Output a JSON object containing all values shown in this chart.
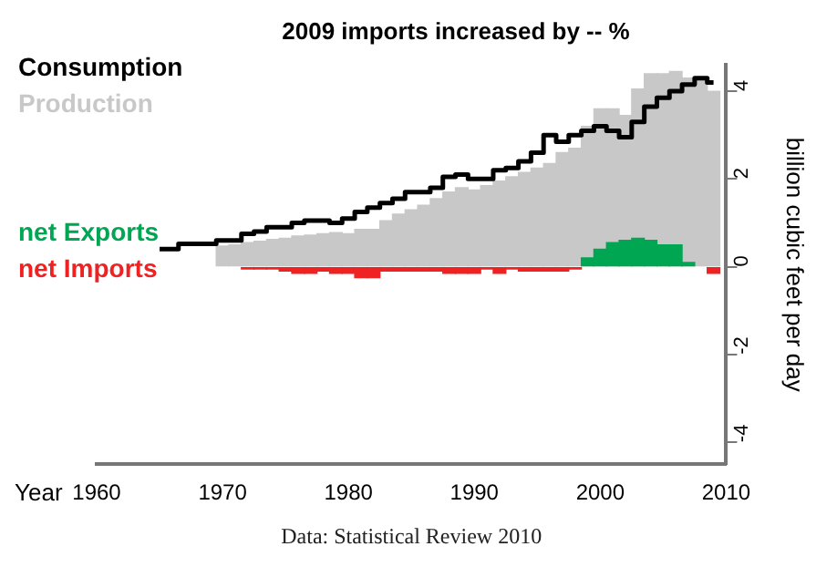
{
  "chart_data": {
    "type": "bar",
    "title": "2009 imports increased by -- %",
    "xlabel": "Year",
    "ylabel": "billion cubic feet per day",
    "xlim": [
      1960,
      2010
    ],
    "xticks": [
      1960,
      1970,
      1980,
      1990,
      2000,
      2010
    ],
    "ylim": [
      -4.5,
      4.6
    ],
    "yticks": [
      -4,
      -2,
      0,
      2,
      4
    ],
    "grid": false,
    "legend": "left",
    "annotations": [
      "Data: Statistical Review 2010"
    ],
    "series": [
      {
        "name": "Production",
        "color": "#c8c8c8",
        "x": [
          1970,
          1971,
          1972,
          1973,
          1974,
          1975,
          1976,
          1977,
          1978,
          1979,
          1980,
          1981,
          1982,
          1983,
          1984,
          1985,
          1986,
          1987,
          1988,
          1989,
          1990,
          1991,
          1992,
          1993,
          1994,
          1995,
          1996,
          1997,
          1998,
          1999,
          2000,
          2001,
          2002,
          2003,
          2004,
          2005,
          2006,
          2007,
          2008,
          2009
        ],
        "values": [
          0.47,
          0.5,
          0.55,
          0.58,
          0.62,
          0.65,
          0.7,
          0.72,
          0.75,
          0.78,
          0.75,
          0.85,
          0.85,
          1.05,
          1.2,
          1.3,
          1.4,
          1.55,
          1.7,
          1.8,
          1.75,
          1.85,
          1.95,
          2.05,
          2.15,
          2.25,
          2.35,
          2.6,
          2.7,
          3.2,
          3.6,
          3.6,
          3.45,
          4.05,
          4.4,
          4.4,
          4.45,
          4.3,
          4.25,
          4.0
        ]
      },
      {
        "name": "net Exports",
        "color": "#00a651",
        "x": [
          1999,
          2000,
          2001,
          2002,
          2003,
          2004,
          2005,
          2006,
          2007
        ],
        "values": [
          0.2,
          0.4,
          0.55,
          0.6,
          0.65,
          0.6,
          0.5,
          0.5,
          0.1
        ]
      },
      {
        "name": "net Imports",
        "color": "#ee2222",
        "x": [
          1972,
          1973,
          1974,
          1975,
          1976,
          1977,
          1978,
          1979,
          1980,
          1981,
          1982,
          1983,
          1984,
          1985,
          1986,
          1987,
          1988,
          1989,
          1990,
          1991,
          1992,
          1993,
          1994,
          1995,
          1996,
          1997,
          1998,
          2009
        ],
        "values": [
          -0.05,
          -0.05,
          -0.05,
          -0.1,
          -0.15,
          -0.15,
          -0.1,
          -0.15,
          -0.15,
          -0.25,
          -0.25,
          -0.1,
          -0.1,
          -0.1,
          -0.1,
          -0.1,
          -0.15,
          -0.15,
          -0.15,
          -0.05,
          -0.15,
          -0.05,
          -0.1,
          -0.1,
          -0.1,
          -0.1,
          -0.05,
          -0.15
        ]
      },
      {
        "name": "Consumption",
        "type": "step",
        "color": "#000000",
        "x": [
          1965,
          1966,
          1967,
          1968,
          1969,
          1970,
          1971,
          1972,
          1973,
          1974,
          1975,
          1976,
          1977,
          1978,
          1979,
          1980,
          1981,
          1982,
          1983,
          1984,
          1985,
          1986,
          1987,
          1988,
          1989,
          1990,
          1991,
          1992,
          1993,
          1994,
          1995,
          1996,
          1997,
          1998,
          1999,
          2000,
          2001,
          2002,
          2003,
          2004,
          2005,
          2006,
          2007,
          2008,
          2009
        ],
        "values": [
          0.4,
          0.4,
          0.52,
          0.52,
          0.52,
          0.6,
          0.6,
          0.75,
          0.8,
          0.9,
          0.9,
          1.0,
          1.05,
          1.05,
          1.0,
          1.1,
          1.25,
          1.35,
          1.45,
          1.55,
          1.7,
          1.7,
          1.8,
          2.05,
          2.1,
          2.0,
          2.0,
          2.2,
          2.25,
          2.4,
          2.6,
          3.0,
          2.85,
          3.0,
          3.1,
          3.2,
          3.1,
          2.95,
          3.3,
          3.65,
          3.85,
          4.0,
          4.15,
          4.3,
          4.2
        ]
      }
    ]
  }
}
